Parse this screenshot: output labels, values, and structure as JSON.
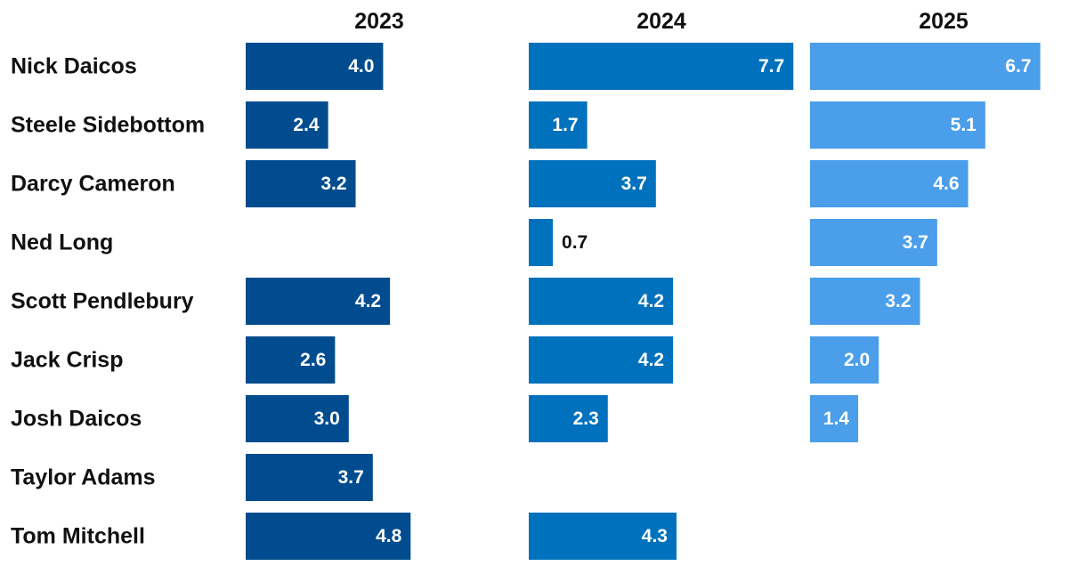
{
  "chart_data": {
    "type": "bar",
    "orientation": "horizontal",
    "layout": "small-multiples",
    "categories": [
      "Nick Daicos",
      "Steele Sidebottom",
      "Darcy Cameron",
      "Ned Long",
      "Scott Pendlebury",
      "Jack Crisp",
      "Josh Daicos",
      "Taylor Adams",
      "Tom Mitchell"
    ],
    "series": [
      {
        "name": "2023",
        "color": "#004c8f",
        "values": [
          4.0,
          2.4,
          3.2,
          null,
          4.2,
          2.6,
          3.0,
          3.7,
          4.8
        ]
      },
      {
        "name": "2024",
        "color": "#0071bc",
        "values": [
          7.7,
          1.7,
          3.7,
          0.7,
          4.2,
          4.2,
          2.3,
          null,
          4.3
        ]
      },
      {
        "name": "2025",
        "color": "#4a9eea",
        "values": [
          6.7,
          5.1,
          4.6,
          3.7,
          3.2,
          2.0,
          1.4,
          null,
          null
        ]
      }
    ],
    "value_labels": [
      [
        "4.0",
        "2.4",
        "3.2",
        null,
        "4.2",
        "2.6",
        "3.0",
        "3.7",
        "4.8"
      ],
      [
        "7.7",
        "1.7",
        "3.7",
        "0.7",
        "4.2",
        "4.2",
        "2.3",
        null,
        "4.3"
      ],
      [
        "6.7",
        "5.1",
        "4.6",
        "3.7",
        "3.2",
        "2.0",
        "1.4",
        null,
        null
      ]
    ],
    "title": "",
    "xlabel": "",
    "ylabel": "",
    "grid": false,
    "legend": "none"
  }
}
